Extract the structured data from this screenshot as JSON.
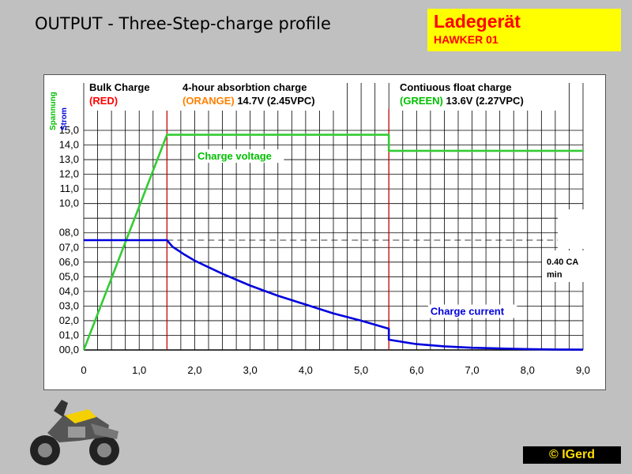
{
  "page": {
    "title": "OUTPUT - Three-Step-charge profile",
    "brand_line1": "Ladegerät",
    "brand_line2": "HAWKER 01",
    "copyright": "©"
  },
  "chart_data": {
    "type": "line",
    "ylabel_voltage": "Spannung",
    "ylabel_current": "Strom",
    "x_ticks": [
      "0",
      "1,0",
      "2,0",
      "3,0",
      "4,0",
      "5,0",
      "6,0",
      "7,0",
      "8,0",
      "9,0"
    ],
    "y_ticks": [
      "00,0",
      "01,0",
      "02,0",
      "03,0",
      "04,0",
      "05,0",
      "06,0",
      "07,0",
      "08,0",
      "10,0",
      "11,0",
      "12,0",
      "13,0",
      "14,0",
      "15,0"
    ],
    "xlim": [
      0,
      9
    ],
    "ylim": [
      0,
      15
    ],
    "grid": true,
    "phases": [
      {
        "title": "Bulk Charge",
        "color_label": "(RED)",
        "color_hex": "#ff0000",
        "detail": ""
      },
      {
        "title": "4-hour absorbtion charge",
        "color_label": "(ORANGE)",
        "color_hex": "#ff8000",
        "detail": "14.7V (2.45VPC)"
      },
      {
        "title": "Contiuous float charge",
        "color_label": "(GREEN)",
        "color_hex": "#00c000",
        "detail": "13.6V (2.27VPC)"
      }
    ],
    "phase_boundaries_x": [
      1.5,
      5.5
    ],
    "threshold": {
      "y": 7.5,
      "label_line1": "0.40 CA",
      "label_line2": "min"
    },
    "series": [
      {
        "name": "Charge voltage",
        "color": "#33cc33",
        "points": [
          [
            0,
            0
          ],
          [
            1.5,
            14.7
          ],
          [
            5.5,
            14.7
          ],
          [
            5.5,
            13.6
          ],
          [
            9.0,
            13.6
          ]
        ]
      },
      {
        "name": "Charge current",
        "color": "#0000dd",
        "points": [
          [
            0,
            7.5
          ],
          [
            1.5,
            7.5
          ],
          [
            1.6,
            7.05
          ],
          [
            1.8,
            6.55
          ],
          [
            2.0,
            6.1
          ],
          [
            2.5,
            5.2
          ],
          [
            3.0,
            4.4
          ],
          [
            3.5,
            3.7
          ],
          [
            4.0,
            3.1
          ],
          [
            4.5,
            2.5
          ],
          [
            5.0,
            2.0
          ],
          [
            5.5,
            1.45
          ],
          [
            5.5,
            0.7
          ],
          [
            6.0,
            0.4
          ],
          [
            6.5,
            0.25
          ],
          [
            7.0,
            0.15
          ],
          [
            7.5,
            0.1
          ],
          [
            8.0,
            0.06
          ],
          [
            8.5,
            0.03
          ],
          [
            9.0,
            0.02
          ]
        ]
      }
    ]
  },
  "colors": {
    "background": "#c0c0c0",
    "brand_box": "#ffff00",
    "brand_text": "#ff0000",
    "grid": "#000000",
    "phase_line": "#cc0000"
  }
}
